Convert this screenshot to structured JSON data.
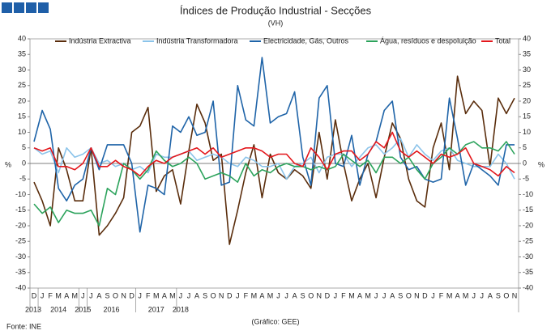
{
  "chart_data": {
    "type": "line",
    "title": "Índices de Produção Industrial - Secções",
    "subtitle": "(VH)",
    "y_label": "%",
    "y2_label": "%",
    "source": "Fonte: INE",
    "credit": "(Gráfico: GEE)",
    "categories": [
      "D",
      "J",
      "F",
      "M",
      "A",
      "M",
      "J",
      "J",
      "A",
      "S",
      "O",
      "N",
      "D",
      "J",
      "F",
      "M",
      "A",
      "M",
      "J",
      "J",
      "A",
      "S",
      "O",
      "N",
      "D",
      "J",
      "F",
      "M",
      "A",
      "M",
      "J",
      "J",
      "A",
      "S",
      "O",
      "N",
      "D",
      "J",
      "F",
      "M",
      "A",
      "M",
      "J",
      "J",
      "A",
      "S",
      "O",
      "N",
      "D",
      "J",
      "F",
      "M",
      "A",
      "M",
      "J",
      "J",
      "A",
      "S",
      "O",
      "N"
    ],
    "years": [
      "2013",
      "2014",
      "2015",
      "2016",
      "2017",
      "2018"
    ],
    "ylim": [
      -40,
      40
    ],
    "yticks": [
      -40,
      -35,
      -30,
      -25,
      -20,
      -15,
      -10,
      -5,
      0,
      5,
      10,
      15,
      20,
      25,
      30,
      35,
      40
    ],
    "series": [
      {
        "name": "Indústria Extractiva",
        "color": "#5a2d0c",
        "values": [
          -6,
          -12,
          -20,
          5,
          -2,
          -12,
          -12,
          5,
          -23,
          -20,
          -16,
          -11,
          10,
          12,
          18,
          -9,
          -4,
          -2,
          -13,
          4,
          19,
          13,
          1,
          3,
          -26,
          -15,
          -3,
          6,
          -11,
          3,
          -3,
          -5,
          -2,
          -4,
          -8,
          10,
          -5,
          14,
          0,
          -12,
          -5,
          0,
          -11,
          2,
          13,
          8,
          -5,
          -12,
          -14,
          5,
          13,
          -2,
          28,
          16,
          20,
          17,
          -1,
          21,
          16,
          21
        ]
      },
      {
        "name": "Indústria Transformadora",
        "color": "#8cc4ea",
        "values": [
          5,
          3,
          4,
          -3,
          5,
          2,
          3,
          5,
          0,
          1,
          -1,
          0,
          -2,
          -1,
          -3,
          3,
          2,
          2,
          3,
          4,
          1,
          2,
          3,
          2,
          0,
          -1,
          2,
          1,
          -1,
          -1,
          0,
          -5,
          -1,
          0,
          2,
          -3,
          2,
          3,
          3,
          -1,
          2,
          5,
          6,
          3,
          5,
          8,
          2,
          6,
          3,
          1,
          4,
          5,
          1,
          0,
          -1,
          -1,
          -1,
          3,
          0,
          -5
        ]
      },
      {
        "name": "Electricidade, Gás, Outros",
        "color": "#1f64a8",
        "values": [
          7,
          17,
          11,
          -8,
          -12,
          -7,
          -5,
          5,
          -2,
          6,
          6,
          6,
          0,
          -22,
          -7,
          -8,
          -10,
          12,
          10,
          15,
          9,
          10,
          20,
          -7,
          -6,
          25,
          14,
          12,
          34,
          13,
          15,
          16,
          23,
          2,
          -7,
          21,
          25,
          0,
          -1,
          9,
          -7,
          3,
          7,
          17,
          20,
          2,
          -2,
          -1,
          -5,
          -6,
          -5,
          21,
          8,
          -7,
          0,
          -2,
          -4,
          -7,
          6,
          6
        ]
      },
      {
        "name": "Água, resíduos e despoluição",
        "color": "#2ca35c",
        "values": [
          -13,
          -16,
          -14,
          -19,
          -15,
          -16,
          -16,
          -15,
          -20,
          -8,
          -10,
          0,
          -2,
          -5,
          -2,
          4,
          1,
          -1,
          0,
          2,
          0,
          -5,
          -4,
          -3,
          -4,
          -6,
          0,
          -4,
          -2,
          -3,
          -1,
          0,
          -1,
          -1,
          -2,
          -1,
          -2,
          -1,
          3,
          1,
          -1,
          1,
          -3,
          2,
          2,
          0,
          2,
          -2,
          -5,
          0,
          2,
          5,
          3,
          6,
          7,
          5,
          5,
          4,
          7,
          3
        ]
      },
      {
        "name": "Total",
        "color": "#e3171c",
        "values": [
          5,
          4,
          5,
          -1,
          -1,
          -2,
          0,
          5,
          -1,
          -1,
          1,
          -1,
          -2,
          -4,
          -1,
          1,
          0,
          2,
          3,
          4,
          5,
          3,
          5,
          2,
          3,
          4,
          5,
          5,
          4,
          2,
          3,
          3,
          0,
          -1,
          5,
          2,
          -2,
          3,
          4,
          4,
          1,
          3,
          7,
          5,
          10,
          4,
          2,
          4,
          2,
          0,
          3,
          2,
          3,
          5,
          0,
          -1,
          -2,
          -4,
          -1,
          -3
        ]
      }
    ]
  }
}
